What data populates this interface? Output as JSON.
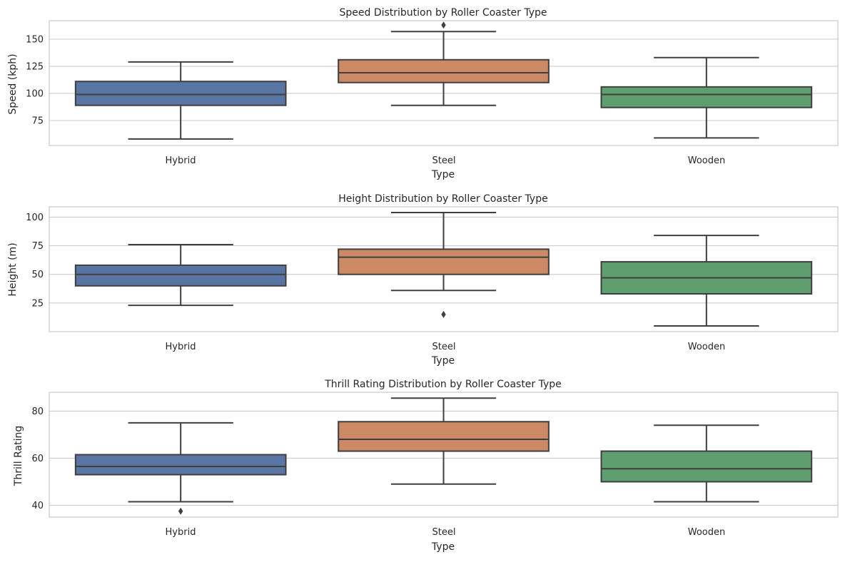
{
  "chart_data": [
    {
      "type": "box",
      "title": "Speed Distribution by Roller Coaster Type",
      "xlabel": "Type",
      "ylabel": "Speed (kph)",
      "categories": [
        "Hybrid",
        "Steel",
        "Wooden"
      ],
      "colors": [
        "#5875a4",
        "#cc8963",
        "#5f9e6e"
      ],
      "ylim": [
        52,
        167
      ],
      "yticks": [
        75,
        100,
        125,
        150
      ],
      "grid": true,
      "boxes": [
        {
          "whislo": 58,
          "q1": 89,
          "med": 99,
          "q3": 111,
          "whishi": 129,
          "fliers": []
        },
        {
          "whislo": 89,
          "q1": 110,
          "med": 119,
          "q3": 131,
          "whishi": 157,
          "fliers": [
            163
          ]
        },
        {
          "whislo": 59,
          "q1": 87,
          "med": 99,
          "q3": 106,
          "whishi": 133,
          "fliers": []
        }
      ]
    },
    {
      "type": "box",
      "title": "Height Distribution by Roller Coaster Type",
      "xlabel": "Type",
      "ylabel": "Height (m)",
      "categories": [
        "Hybrid",
        "Steel",
        "Wooden"
      ],
      "colors": [
        "#5875a4",
        "#cc8963",
        "#5f9e6e"
      ],
      "ylim": [
        0,
        109
      ],
      "yticks": [
        25,
        50,
        75,
        100
      ],
      "grid": true,
      "boxes": [
        {
          "whislo": 23,
          "q1": 40,
          "med": 50,
          "q3": 58,
          "whishi": 76,
          "fliers": []
        },
        {
          "whislo": 36,
          "q1": 50,
          "med": 65,
          "q3": 72,
          "whishi": 104,
          "fliers": [
            15
          ]
        },
        {
          "whislo": 5,
          "q1": 33,
          "med": 47,
          "q3": 61,
          "whishi": 84,
          "fliers": []
        }
      ]
    },
    {
      "type": "box",
      "title": "Thrill Rating Distribution by Roller Coaster Type",
      "xlabel": "Type",
      "ylabel": "Thrill Rating",
      "categories": [
        "Hybrid",
        "Steel",
        "Wooden"
      ],
      "colors": [
        "#5875a4",
        "#cc8963",
        "#5f9e6e"
      ],
      "ylim": [
        35,
        88
      ],
      "yticks": [
        40,
        60,
        80
      ],
      "grid": true,
      "boxes": [
        {
          "whislo": 41.5,
          "q1": 53,
          "med": 56.5,
          "q3": 61.5,
          "whishi": 75,
          "fliers": [
            37.5
          ]
        },
        {
          "whislo": 49,
          "q1": 63,
          "med": 68,
          "q3": 75.5,
          "whishi": 85.5,
          "fliers": []
        },
        {
          "whislo": 41.5,
          "q1": 50,
          "med": 55.5,
          "q3": 63,
          "whishi": 74,
          "fliers": []
        }
      ]
    }
  ]
}
